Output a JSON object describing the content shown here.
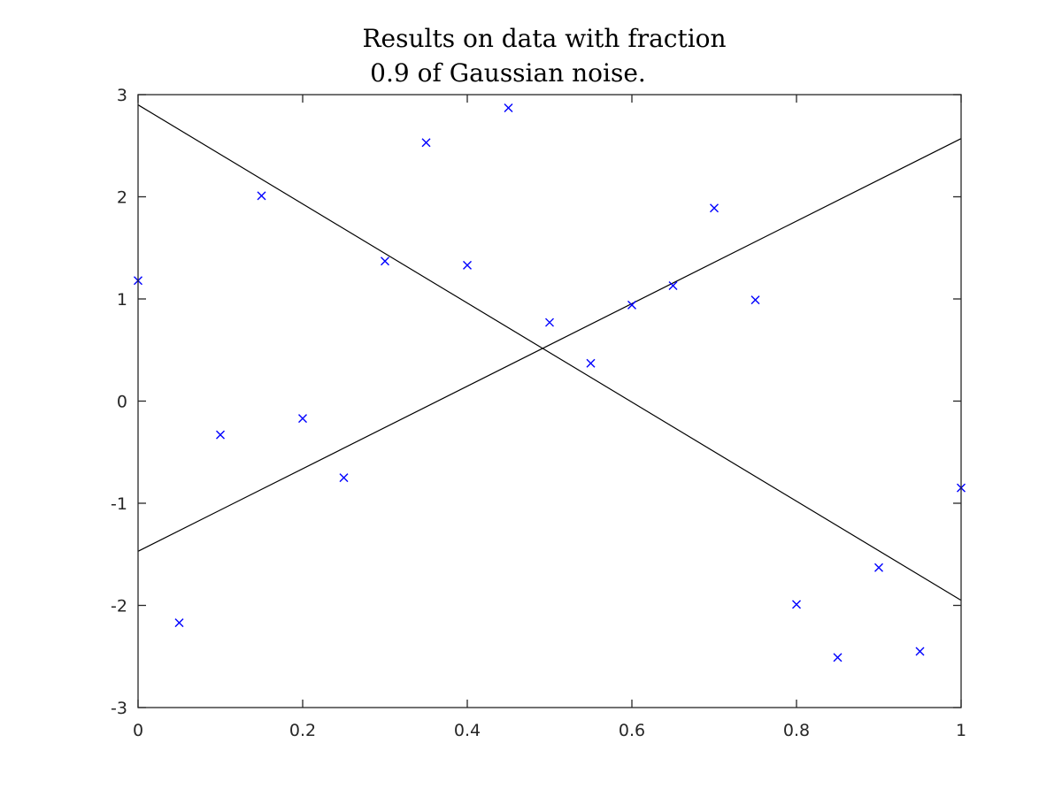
{
  "chart_data": {
    "type": "scatter",
    "title_lines": [
      "Results on data with fraction",
      "0.9 of Gaussian noise."
    ],
    "xlabel": "",
    "ylabel": "",
    "xlim": [
      0,
      1
    ],
    "ylim": [
      -3,
      3
    ],
    "grid": false,
    "x_ticks": [
      0,
      0.2,
      0.4,
      0.6,
      0.8,
      1
    ],
    "x_tick_labels": [
      "0",
      "0.2",
      "0.4",
      "0.6",
      "0.8",
      "1"
    ],
    "y_ticks": [
      -3,
      -2,
      -1,
      0,
      1,
      2,
      3
    ],
    "y_tick_labels": [
      "-3",
      "-2",
      "-1",
      "0",
      "1",
      "2",
      "3"
    ],
    "marker_color": "#0000ff",
    "line_color": "#000000",
    "points": {
      "x": [
        0,
        0.05,
        0.1,
        0.15,
        0.2,
        0.25,
        0.3,
        0.35,
        0.4,
        0.45,
        0.5,
        0.55,
        0.6,
        0.65,
        0.7,
        0.75,
        0.8,
        0.85,
        0.9,
        0.95,
        1.0
      ],
      "y": [
        1.18,
        -2.17,
        -0.33,
        2.01,
        -0.17,
        -0.75,
        1.37,
        2.53,
        1.33,
        2.87,
        0.77,
        0.37,
        0.94,
        1.13,
        1.89,
        0.99,
        -1.99,
        -2.51,
        -1.63,
        -2.45,
        -0.85
      ]
    },
    "lines": [
      {
        "x": [
          0,
          1
        ],
        "y": [
          2.9,
          -1.95
        ]
      },
      {
        "x": [
          0,
          1
        ],
        "y": [
          -1.47,
          2.57
        ]
      }
    ]
  }
}
